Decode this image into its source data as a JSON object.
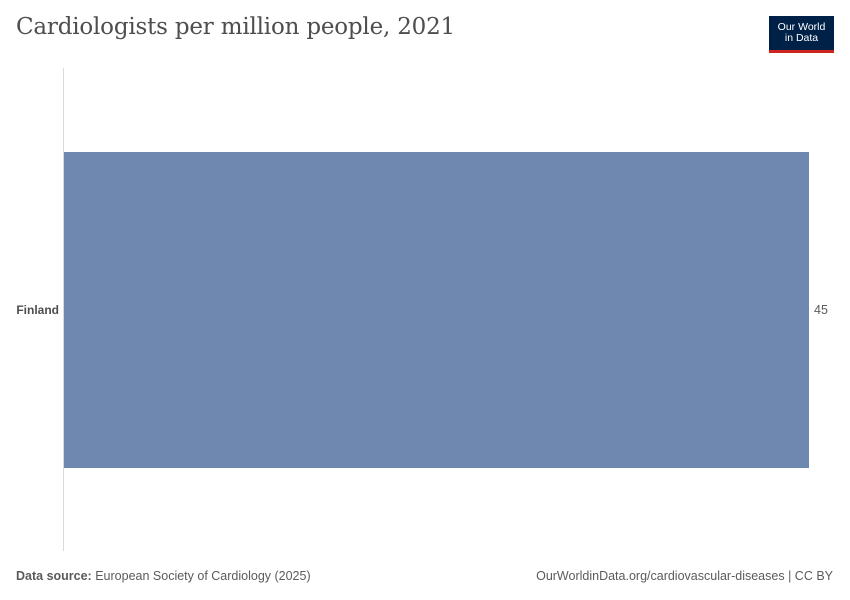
{
  "header": {
    "title": "Cardiologists per million people, 2021"
  },
  "logo": {
    "line1": "Our World",
    "line2": "in Data",
    "background": "#002147",
    "accent": "#ce261e"
  },
  "chart_data": {
    "type": "bar",
    "orientation": "horizontal",
    "categories": [
      "Finland"
    ],
    "values": [
      45
    ],
    "value_labels": [
      "45"
    ],
    "xlim": [
      0,
      45
    ],
    "bar_color": "#6f88b0",
    "grid": false
  },
  "footer": {
    "source_label": "Data source:",
    "source_text": "European Society of Cardiology (2025)",
    "url": "OurWorldinData.org/cardiovascular-diseases",
    "license": "| CC BY"
  }
}
